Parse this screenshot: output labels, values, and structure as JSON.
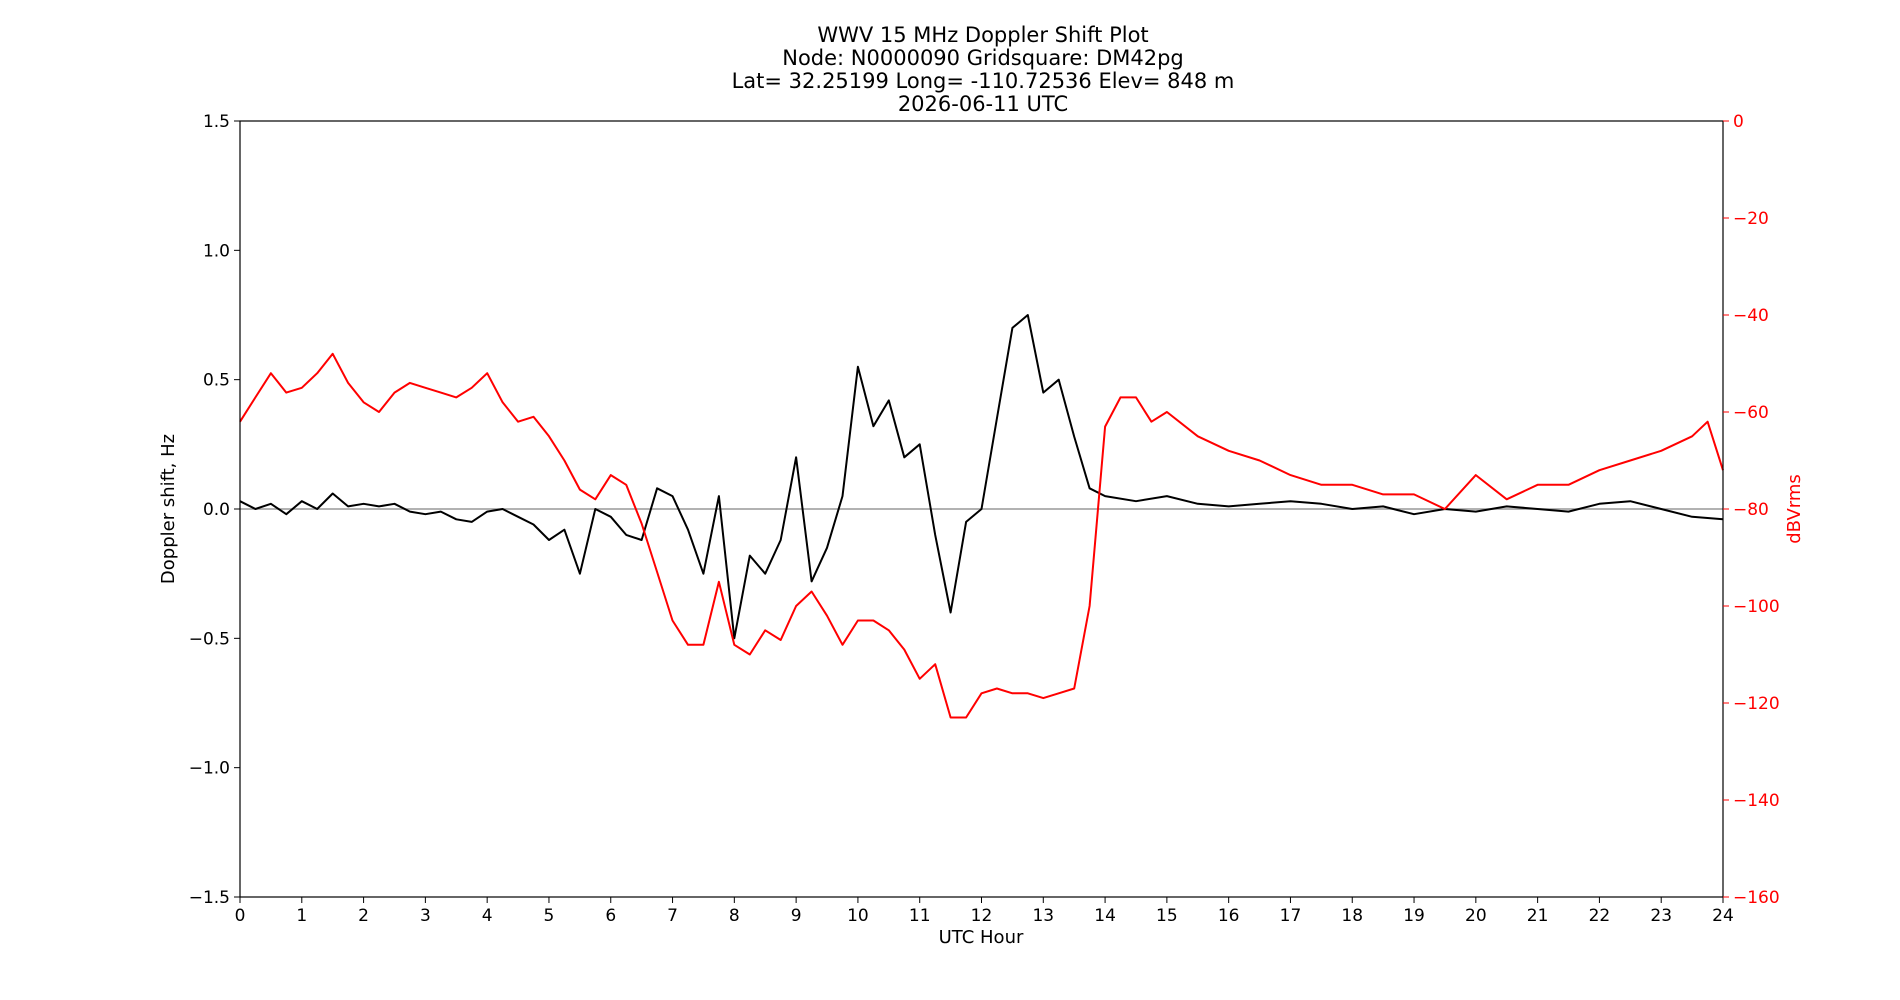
{
  "chart_data": {
    "type": "line",
    "title_lines": [
      "WWV 15 MHz Doppler Shift Plot",
      "Node:  N0000090     Gridsquare:  DM42pg",
      "Lat= 32.25199    Long= -110.72536    Elev= 848 m",
      "2026-06-11  UTC"
    ],
    "xlabel": "UTC Hour",
    "ylabel_left": "Doppler shift, Hz",
    "ylabel_right": "dBVrms",
    "xlim": [
      0,
      24
    ],
    "ylim_left": [
      -1.5,
      1.5
    ],
    "ylim_right": [
      -160,
      0
    ],
    "x_ticks": [
      "0",
      "1",
      "2",
      "3",
      "4",
      "5",
      "6",
      "7",
      "8",
      "9",
      "10",
      "11",
      "12",
      "13",
      "14",
      "15",
      "16",
      "17",
      "18",
      "19",
      "20",
      "21",
      "22",
      "23",
      "24"
    ],
    "y_ticks_left": [
      "1.5",
      "1.0",
      "0.5",
      "0.0",
      "−0.5",
      "−1.0",
      "−1.5"
    ],
    "y_ticks_right": [
      "0",
      "−20",
      "−40",
      "−60",
      "−80",
      "−100",
      "−120",
      "−140",
      "−160"
    ],
    "zero_line": 0.0,
    "grid": false,
    "series": [
      {
        "axis": "left",
        "color": "#000000",
        "x": [
          0,
          0.25,
          0.5,
          0.75,
          1,
          1.25,
          1.5,
          1.75,
          2,
          2.25,
          2.5,
          2.75,
          3,
          3.25,
          3.5,
          3.75,
          4,
          4.25,
          4.5,
          4.75,
          5,
          5.25,
          5.5,
          5.75,
          6,
          6.25,
          6.5,
          6.75,
          7,
          7.25,
          7.5,
          7.75,
          8,
          8.25,
          8.5,
          8.75,
          9,
          9.25,
          9.5,
          9.75,
          10,
          10.25,
          10.5,
          10.75,
          11,
          11.25,
          11.5,
          11.75,
          12,
          12.25,
          12.5,
          12.75,
          13,
          13.25,
          13.5,
          13.75,
          14,
          14.5,
          15,
          15.5,
          16,
          16.5,
          17,
          17.5,
          18,
          18.5,
          19,
          19.5,
          20,
          20.5,
          21,
          21.5,
          22,
          22.5,
          23,
          23.5,
          24
        ],
        "values": [
          0.03,
          0.0,
          0.02,
          -0.02,
          0.03,
          0.0,
          0.06,
          0.01,
          0.02,
          0.01,
          0.02,
          -0.01,
          -0.02,
          -0.01,
          -0.04,
          -0.05,
          -0.01,
          0.0,
          -0.03,
          -0.06,
          -0.12,
          -0.08,
          -0.25,
          0.0,
          -0.03,
          -0.1,
          -0.12,
          0.08,
          0.05,
          -0.08,
          -0.25,
          0.05,
          -0.5,
          -0.18,
          -0.25,
          -0.12,
          0.2,
          -0.28,
          -0.15,
          0.05,
          0.55,
          0.32,
          0.42,
          0.2,
          0.25,
          -0.1,
          -0.4,
          -0.05,
          0.0,
          0.35,
          0.7,
          0.75,
          0.45,
          0.5,
          0.28,
          0.08,
          0.05,
          0.03,
          0.05,
          0.02,
          0.01,
          0.02,
          0.03,
          0.02,
          0.0,
          0.01,
          -0.02,
          0.0,
          -0.01,
          0.01,
          0.0,
          -0.01,
          0.02,
          0.03,
          0.0,
          -0.03,
          -0.04
        ]
      },
      {
        "axis": "right",
        "color": "#ff0000",
        "x": [
          0,
          0.25,
          0.5,
          0.75,
          1,
          1.25,
          1.5,
          1.75,
          2,
          2.25,
          2.5,
          2.75,
          3,
          3.25,
          3.5,
          3.75,
          4,
          4.25,
          4.5,
          4.75,
          5,
          5.25,
          5.5,
          5.75,
          6,
          6.25,
          6.5,
          6.75,
          7,
          7.25,
          7.5,
          7.75,
          8,
          8.25,
          8.5,
          8.75,
          9,
          9.25,
          9.5,
          9.75,
          10,
          10.25,
          10.5,
          10.75,
          11,
          11.25,
          11.5,
          11.75,
          12,
          12.25,
          12.5,
          12.75,
          13,
          13.25,
          13.5,
          13.75,
          14,
          14.25,
          14.5,
          14.75,
          15,
          15.5,
          16,
          16.5,
          17,
          17.5,
          18,
          18.5,
          19,
          19.5,
          20,
          20.5,
          21,
          21.5,
          22,
          22.5,
          23,
          23.5,
          23.75,
          24
        ],
        "values": [
          -62,
          -57,
          -52,
          -56,
          -55,
          -52,
          -48,
          -54,
          -58,
          -60,
          -56,
          -54,
          -55,
          -56,
          -57,
          -55,
          -52,
          -58,
          -62,
          -61,
          -65,
          -70,
          -76,
          -78,
          -73,
          -75,
          -83,
          -93,
          -103,
          -108,
          -108,
          -95,
          -108,
          -110,
          -105,
          -107,
          -100,
          -97,
          -102,
          -108,
          -103,
          -103,
          -105,
          -109,
          -115,
          -112,
          -123,
          -123,
          -118,
          -117,
          -118,
          -118,
          -119,
          -118,
          -117,
          -100,
          -63,
          -57,
          -57,
          -62,
          -60,
          -65,
          -68,
          -70,
          -73,
          -75,
          -75,
          -77,
          -77,
          -80,
          -73,
          -78,
          -75,
          -75,
          -72,
          -70,
          -68,
          -65,
          -62,
          -72
        ]
      }
    ]
  }
}
